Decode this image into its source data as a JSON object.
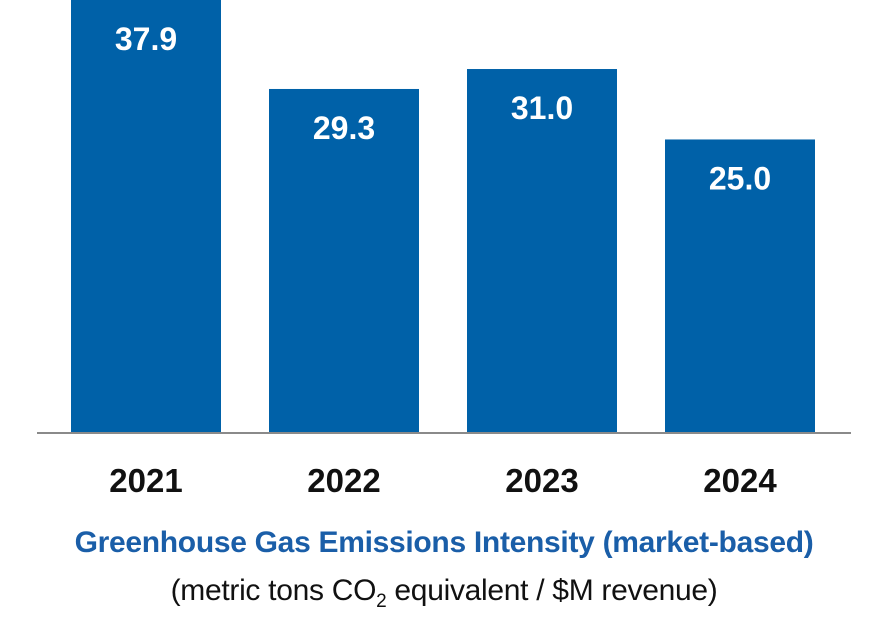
{
  "chart_data": {
    "type": "bar",
    "categories": [
      "2021",
      "2022",
      "2023",
      "2024"
    ],
    "values": [
      37.9,
      29.3,
      31.0,
      25.0
    ],
    "value_labels": [
      "37.9",
      "29.3",
      "31.0",
      "25.0"
    ],
    "title": "Greenhouse Gas Emissions Intensity (market-based)",
    "subtitle": {
      "before": "(metric tons CO",
      "sub": "2",
      "after": " equivalent / $M revenue)"
    },
    "xlabel": "",
    "ylabel": "",
    "bar_color": "#0061a8",
    "title_color": "#1a5ea8",
    "grid": false,
    "legend": "none"
  }
}
